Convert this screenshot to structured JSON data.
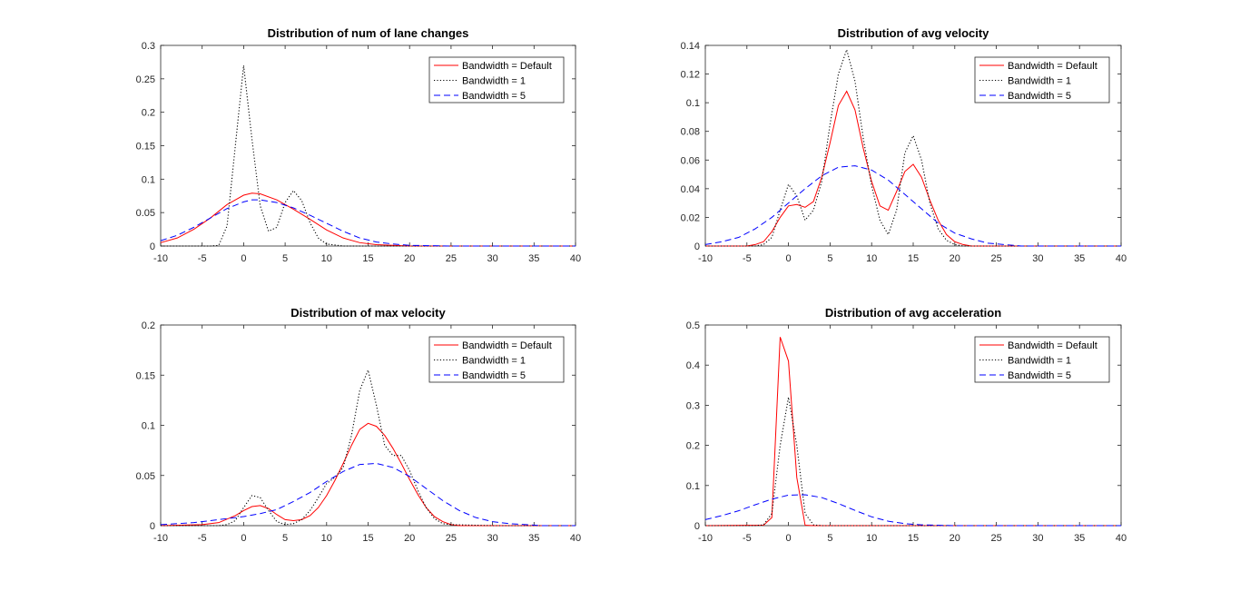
{
  "chart_data": [
    {
      "type": "line",
      "title": "Distribution of num of lane changes",
      "xlim": [
        -10,
        40
      ],
      "ylim": [
        0,
        0.3
      ],
      "xticks": [
        "-10",
        "-5",
        "0",
        "5",
        "10",
        "15",
        "20",
        "25",
        "30",
        "35",
        "40"
      ],
      "yticks": [
        "0",
        "0.05",
        "0.1",
        "0.15",
        "0.2",
        "0.25",
        "0.3"
      ],
      "grid": false,
      "legend_position": "top-right",
      "series": [
        {
          "name": "Bandwidth = Default",
          "color": "#ff0000",
          "dash": "solid",
          "x": [
            -10,
            -8,
            -6,
            -4,
            -2,
            0,
            1,
            2,
            4,
            6,
            8,
            10,
            12,
            14,
            16,
            18,
            20,
            25,
            30,
            35,
            40
          ],
          "y": [
            0.005,
            0.012,
            0.025,
            0.042,
            0.062,
            0.076,
            0.079,
            0.078,
            0.069,
            0.055,
            0.04,
            0.024,
            0.012,
            0.005,
            0.002,
            0.001,
            0,
            0,
            0,
            0,
            0
          ]
        },
        {
          "name": "Bandwidth = 1",
          "color": "#000000",
          "dash": "dotted",
          "x": [
            -10,
            -4,
            -3,
            -2,
            -1,
            0,
            1,
            2,
            3,
            4,
            5,
            6,
            7,
            8,
            9,
            10,
            12,
            15,
            20,
            30,
            40
          ],
          "y": [
            0,
            0,
            0.001,
            0.03,
            0.15,
            0.27,
            0.16,
            0.06,
            0.022,
            0.028,
            0.065,
            0.083,
            0.068,
            0.035,
            0.012,
            0.003,
            0,
            0,
            0,
            0,
            0
          ]
        },
        {
          "name": "Bandwidth = 5",
          "color": "#0000ff",
          "dash": "dashed",
          "x": [
            -10,
            -8,
            -6,
            -4,
            -2,
            0,
            1,
            2,
            4,
            6,
            8,
            10,
            12,
            14,
            16,
            18,
            20,
            25,
            30,
            35,
            40
          ],
          "y": [
            0.008,
            0.016,
            0.028,
            0.042,
            0.056,
            0.066,
            0.069,
            0.069,
            0.065,
            0.057,
            0.046,
            0.034,
            0.022,
            0.012,
            0.006,
            0.003,
            0.001,
            0,
            0,
            0,
            0
          ]
        }
      ]
    },
    {
      "type": "line",
      "title": "Distribution of avg velocity",
      "xlim": [
        -10,
        40
      ],
      "ylim": [
        0,
        0.14
      ],
      "xticks": [
        "-10",
        "-5",
        "0",
        "5",
        "10",
        "15",
        "20",
        "25",
        "30",
        "35",
        "40"
      ],
      "yticks": [
        "0",
        "0.02",
        "0.04",
        "0.06",
        "0.08",
        "0.1",
        "0.12",
        "0.14"
      ],
      "grid": false,
      "legend_position": "top-right",
      "series": [
        {
          "name": "Bandwidth = Default",
          "color": "#ff0000",
          "dash": "solid",
          "x": [
            -10,
            -5,
            -4,
            -3,
            -2,
            -1,
            0,
            1,
            2,
            3,
            4,
            5,
            6,
            7,
            8,
            9,
            10,
            11,
            12,
            13,
            14,
            15,
            16,
            17,
            18,
            19,
            20,
            21,
            22,
            25,
            30,
            40
          ],
          "y": [
            0,
            0,
            0.001,
            0.003,
            0.01,
            0.02,
            0.028,
            0.029,
            0.027,
            0.031,
            0.048,
            0.072,
            0.098,
            0.108,
            0.095,
            0.068,
            0.045,
            0.028,
            0.025,
            0.038,
            0.052,
            0.057,
            0.048,
            0.032,
            0.018,
            0.008,
            0.003,
            0.001,
            0,
            0,
            0,
            0
          ]
        },
        {
          "name": "Bandwidth = 1",
          "color": "#000000",
          "dash": "dotted",
          "x": [
            -10,
            -4,
            -3,
            -2,
            -1,
            0,
            1,
            2,
            3,
            4,
            5,
            6,
            7,
            8,
            9,
            10,
            11,
            12,
            13,
            14,
            15,
            16,
            17,
            18,
            19,
            20,
            21,
            22,
            30,
            40
          ],
          "y": [
            0,
            0,
            0.001,
            0.006,
            0.025,
            0.043,
            0.035,
            0.018,
            0.025,
            0.045,
            0.085,
            0.12,
            0.137,
            0.115,
            0.075,
            0.042,
            0.018,
            0.008,
            0.025,
            0.065,
            0.077,
            0.06,
            0.03,
            0.012,
            0.004,
            0.001,
            0,
            0,
            0,
            0
          ]
        },
        {
          "name": "Bandwidth = 5",
          "color": "#0000ff",
          "dash": "dashed",
          "x": [
            -10,
            -8,
            -6,
            -4,
            -2,
            0,
            2,
            4,
            6,
            8,
            10,
            12,
            14,
            16,
            18,
            20,
            22,
            24,
            26,
            28,
            30,
            40
          ],
          "y": [
            0.001,
            0.003,
            0.006,
            0.012,
            0.02,
            0.03,
            0.04,
            0.049,
            0.055,
            0.056,
            0.053,
            0.046,
            0.036,
            0.026,
            0.016,
            0.009,
            0.005,
            0.002,
            0.001,
            0,
            0,
            0
          ]
        }
      ]
    },
    {
      "type": "line",
      "title": "Distribution of max velocity",
      "xlim": [
        -10,
        40
      ],
      "ylim": [
        0,
        0.2
      ],
      "xticks": [
        "-10",
        "-5",
        "0",
        "5",
        "10",
        "15",
        "20",
        "25",
        "30",
        "35",
        "40"
      ],
      "yticks": [
        "0",
        "0.05",
        "0.1",
        "0.15",
        "0.2"
      ],
      "grid": false,
      "legend_position": "top-right",
      "series": [
        {
          "name": "Bandwidth = Default",
          "color": "#ff0000",
          "dash": "solid",
          "x": [
            -10,
            -5,
            -3,
            -1,
            0,
            1,
            2,
            3,
            4,
            5,
            6,
            7,
            8,
            9,
            10,
            11,
            12,
            13,
            14,
            15,
            16,
            17,
            18,
            19,
            20,
            21,
            22,
            23,
            24,
            25,
            26,
            28,
            30,
            40
          ],
          "y": [
            0,
            0.001,
            0.003,
            0.01,
            0.015,
            0.019,
            0.02,
            0.017,
            0.011,
            0.006,
            0.005,
            0.006,
            0.01,
            0.018,
            0.03,
            0.045,
            0.062,
            0.08,
            0.096,
            0.102,
            0.099,
            0.09,
            0.077,
            0.062,
            0.046,
            0.031,
            0.018,
            0.009,
            0.004,
            0.001,
            0,
            0,
            0,
            0
          ]
        },
        {
          "name": "Bandwidth = 1",
          "color": "#000000",
          "dash": "dotted",
          "x": [
            -10,
            -3,
            -2,
            -1,
            0,
            1,
            2,
            3,
            4,
            5,
            6,
            7,
            8,
            9,
            10,
            11,
            12,
            13,
            14,
            15,
            16,
            17,
            18,
            19,
            20,
            21,
            22,
            23,
            24,
            25,
            30,
            40
          ],
          "y": [
            0,
            0,
            0.001,
            0.005,
            0.018,
            0.03,
            0.028,
            0.015,
            0.004,
            0.001,
            0.002,
            0.006,
            0.015,
            0.028,
            0.042,
            0.048,
            0.058,
            0.09,
            0.135,
            0.155,
            0.12,
            0.08,
            0.07,
            0.07,
            0.055,
            0.035,
            0.018,
            0.007,
            0.002,
            0.001,
            0,
            0
          ]
        },
        {
          "name": "Bandwidth = 5",
          "color": "#0000ff",
          "dash": "dashed",
          "x": [
            -10,
            -6,
            -4,
            -2,
            0,
            2,
            4,
            6,
            8,
            10,
            12,
            14,
            16,
            18,
            20,
            22,
            24,
            26,
            28,
            30,
            32,
            34,
            36,
            40
          ],
          "y": [
            0.001,
            0.003,
            0.005,
            0.007,
            0.009,
            0.012,
            0.016,
            0.024,
            0.033,
            0.044,
            0.054,
            0.061,
            0.062,
            0.058,
            0.049,
            0.037,
            0.025,
            0.015,
            0.008,
            0.004,
            0.002,
            0.001,
            0,
            0
          ]
        }
      ]
    },
    {
      "type": "line",
      "title": "Distribution of avg acceleration",
      "xlim": [
        -10,
        40
      ],
      "ylim": [
        0,
        0.5
      ],
      "xticks": [
        "-10",
        "-5",
        "0",
        "5",
        "10",
        "15",
        "20",
        "25",
        "30",
        "35",
        "40"
      ],
      "yticks": [
        "0",
        "0.1",
        "0.2",
        "0.3",
        "0.4",
        "0.5"
      ],
      "grid": false,
      "legend_position": "top-right",
      "series": [
        {
          "name": "Bandwidth = Default",
          "color": "#ff0000",
          "dash": "solid",
          "x": [
            -10,
            -3,
            -2,
            -1,
            0,
            1,
            2,
            3,
            10,
            20,
            30,
            40
          ],
          "y": [
            0,
            0.001,
            0.02,
            0.47,
            0.41,
            0.12,
            0.001,
            0,
            0,
            0,
            0,
            0
          ]
        },
        {
          "name": "Bandwidth = 1",
          "color": "#000000",
          "dash": "dotted",
          "x": [
            -10,
            -4,
            -3,
            -2,
            -1,
            0,
            1,
            2,
            3,
            4,
            10,
            40
          ],
          "y": [
            0,
            0,
            0.002,
            0.03,
            0.2,
            0.32,
            0.2,
            0.03,
            0.002,
            0,
            0,
            0
          ]
        },
        {
          "name": "Bandwidth = 5",
          "color": "#0000ff",
          "dash": "dashed",
          "x": [
            -10,
            -8,
            -6,
            -4,
            -2,
            0,
            2,
            4,
            6,
            8,
            10,
            12,
            14,
            16,
            20,
            40
          ],
          "y": [
            0.015,
            0.025,
            0.037,
            0.052,
            0.066,
            0.076,
            0.077,
            0.07,
            0.055,
            0.038,
            0.022,
            0.011,
            0.005,
            0.002,
            0,
            0
          ]
        }
      ]
    }
  ]
}
